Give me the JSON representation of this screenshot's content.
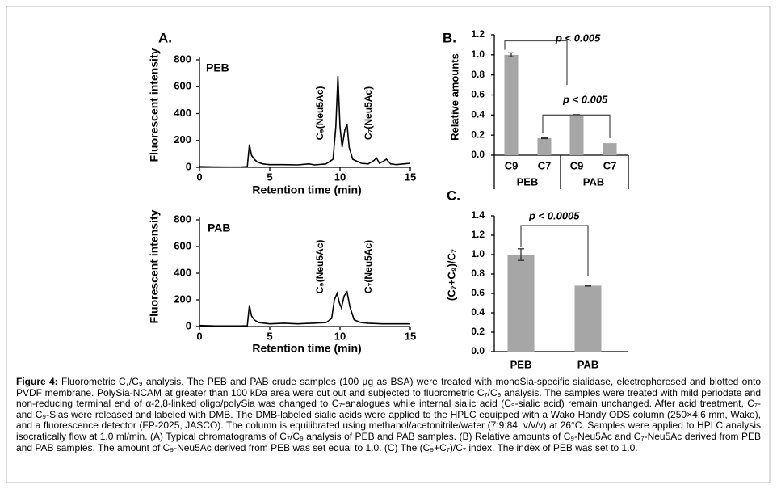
{
  "figure_label": "Figure 4:",
  "caption": "Fluorometric C₇/C₉ analysis. The PEB and PAB crude samples (100 µg as BSA) were treated with monoSia-specific sialidase, electrophoresed and blotted onto PVDF membrane. PolySia-NCAM at greater than 100 kDa area were cut out and subjected to fluorometric C₇/C₉ analysis. The samples were treated with mild periodate and non-reducing terminal end of α-2,8-linked oligo/polySia was changed to C₇-analogues while internal sialic acid (C₉-sialic acid) remain unchanged. After acid treatment, C₇- and C₉-Sias were released and labeled with DMB. The DMB-labeled sialic acids were applied to the HPLC equipped with a Wako Handy ODS column (250×4.6 mm, Wako), and a fluorescence detector (FP-2025, JASCO). The column is equilibrated using methanol/acetonitrile/water (7:9:84, v/v/v) at 26°C. Samples were applied to HPLC analysis isocratically flow at 1.0 ml/min. (A) Typical chromatograms of C₇/C₉ analysis of PEB and PAB samples. (B) Relative amounts of C₉-Neu5Ac and C₇-Neu5Ac derived from PEB and PAB samples. The amount of C₉-Neu5Ac derived from PEB was set equal to 1.0. (C) The (C₉+C₇)/C₇ index. The index of PEB was set to 1.0.",
  "chart_data": [
    {
      "type": "line",
      "panel_label": "A.",
      "title": "PEB",
      "xlabel": "Retention time (min)",
      "ylabel": "Fluorescent intensity",
      "annotations": [
        "C₉(Neu5Ac)",
        "C₇(Neu5Ac)"
      ],
      "color": "#000000",
      "x": [
        0,
        1,
        2,
        3,
        3.4,
        3.55,
        3.7,
        3.9,
        4.1,
        4.5,
        5,
        6,
        7,
        7.8,
        8.2,
        9,
        9.5,
        9.7,
        9.85,
        10,
        10.15,
        10.35,
        10.5,
        10.65,
        10.9,
        11.5,
        12,
        12.4,
        12.6,
        12.8,
        13.1,
        13.3,
        13.6,
        14,
        14.5,
        15
      ],
      "values": [
        5,
        3,
        2,
        3,
        5,
        170,
        90,
        60,
        40,
        25,
        20,
        20,
        18,
        25,
        18,
        25,
        60,
        300,
        680,
        300,
        150,
        280,
        320,
        150,
        60,
        30,
        25,
        50,
        70,
        30,
        45,
        60,
        25,
        20,
        25,
        30
      ],
      "xlim": [
        0,
        15
      ],
      "xticks": [
        0,
        5,
        10,
        15
      ],
      "ylim": [
        0,
        800
      ],
      "yticks": [
        0,
        200,
        400,
        600,
        800
      ]
    },
    {
      "type": "line",
      "title": "PAB",
      "xlabel": "Retention time (min)",
      "ylabel": "Fluorescent intensity",
      "annotations": [
        "C₉(Neu5Ac)",
        "C₇(Neu5Ac)"
      ],
      "color": "#000000",
      "x": [
        0,
        1,
        2,
        3,
        3.4,
        3.55,
        3.7,
        3.9,
        4.2,
        5,
        6,
        7,
        8,
        9,
        9.4,
        9.6,
        9.8,
        9.95,
        10.1,
        10.3,
        10.5,
        10.7,
        11,
        11.5,
        12,
        13,
        14,
        15
      ],
      "values": [
        8,
        5,
        4,
        5,
        6,
        160,
        80,
        50,
        30,
        20,
        25,
        20,
        25,
        30,
        60,
        200,
        250,
        180,
        140,
        230,
        260,
        150,
        50,
        30,
        25,
        20,
        20,
        20
      ],
      "xlim": [
        0,
        15
      ],
      "xticks": [
        0,
        5,
        10,
        15
      ],
      "ylim": [
        0,
        800
      ],
      "yticks": [
        0,
        200,
        400,
        600,
        800
      ]
    },
    {
      "type": "bar",
      "panel_label": "B.",
      "ylabel": "Relative amounts",
      "color": "#a6a6a6",
      "categories": [
        "C9",
        "C7",
        "C9",
        "C7"
      ],
      "groups": [
        "PEB",
        "PAB"
      ],
      "values": [
        1.0,
        0.17,
        0.4,
        0.12
      ],
      "errors": [
        0.02,
        0.005,
        0.005,
        0.0
      ],
      "annotations": [
        "p < 0.005",
        "p < 0.005"
      ],
      "ylim": [
        0,
        1.2
      ],
      "yticks": [
        {
          "value": 0,
          "label": "0.0"
        },
        0.2,
        0.4,
        0.6,
        0.8,
        {
          "value": 1,
          "label": "1.0"
        },
        1.2
      ]
    },
    {
      "type": "bar",
      "panel_label": "C.",
      "ylabel": "(C₇+C₉)/C₇",
      "color": "#a6a6a6",
      "categories": [
        "PEB",
        "PAB"
      ],
      "values": [
        1.0,
        0.68
      ],
      "errors": [
        0.06,
        0.005
      ],
      "annotations": [
        "p < 0.0005"
      ],
      "ylim": [
        0,
        1.4
      ],
      "yticks": [
        {
          "value": 0,
          "label": "0.0"
        },
        0.2,
        0.4,
        0.6,
        0.8,
        {
          "value": 1,
          "label": "1.0"
        },
        1.2,
        1.4
      ]
    }
  ]
}
